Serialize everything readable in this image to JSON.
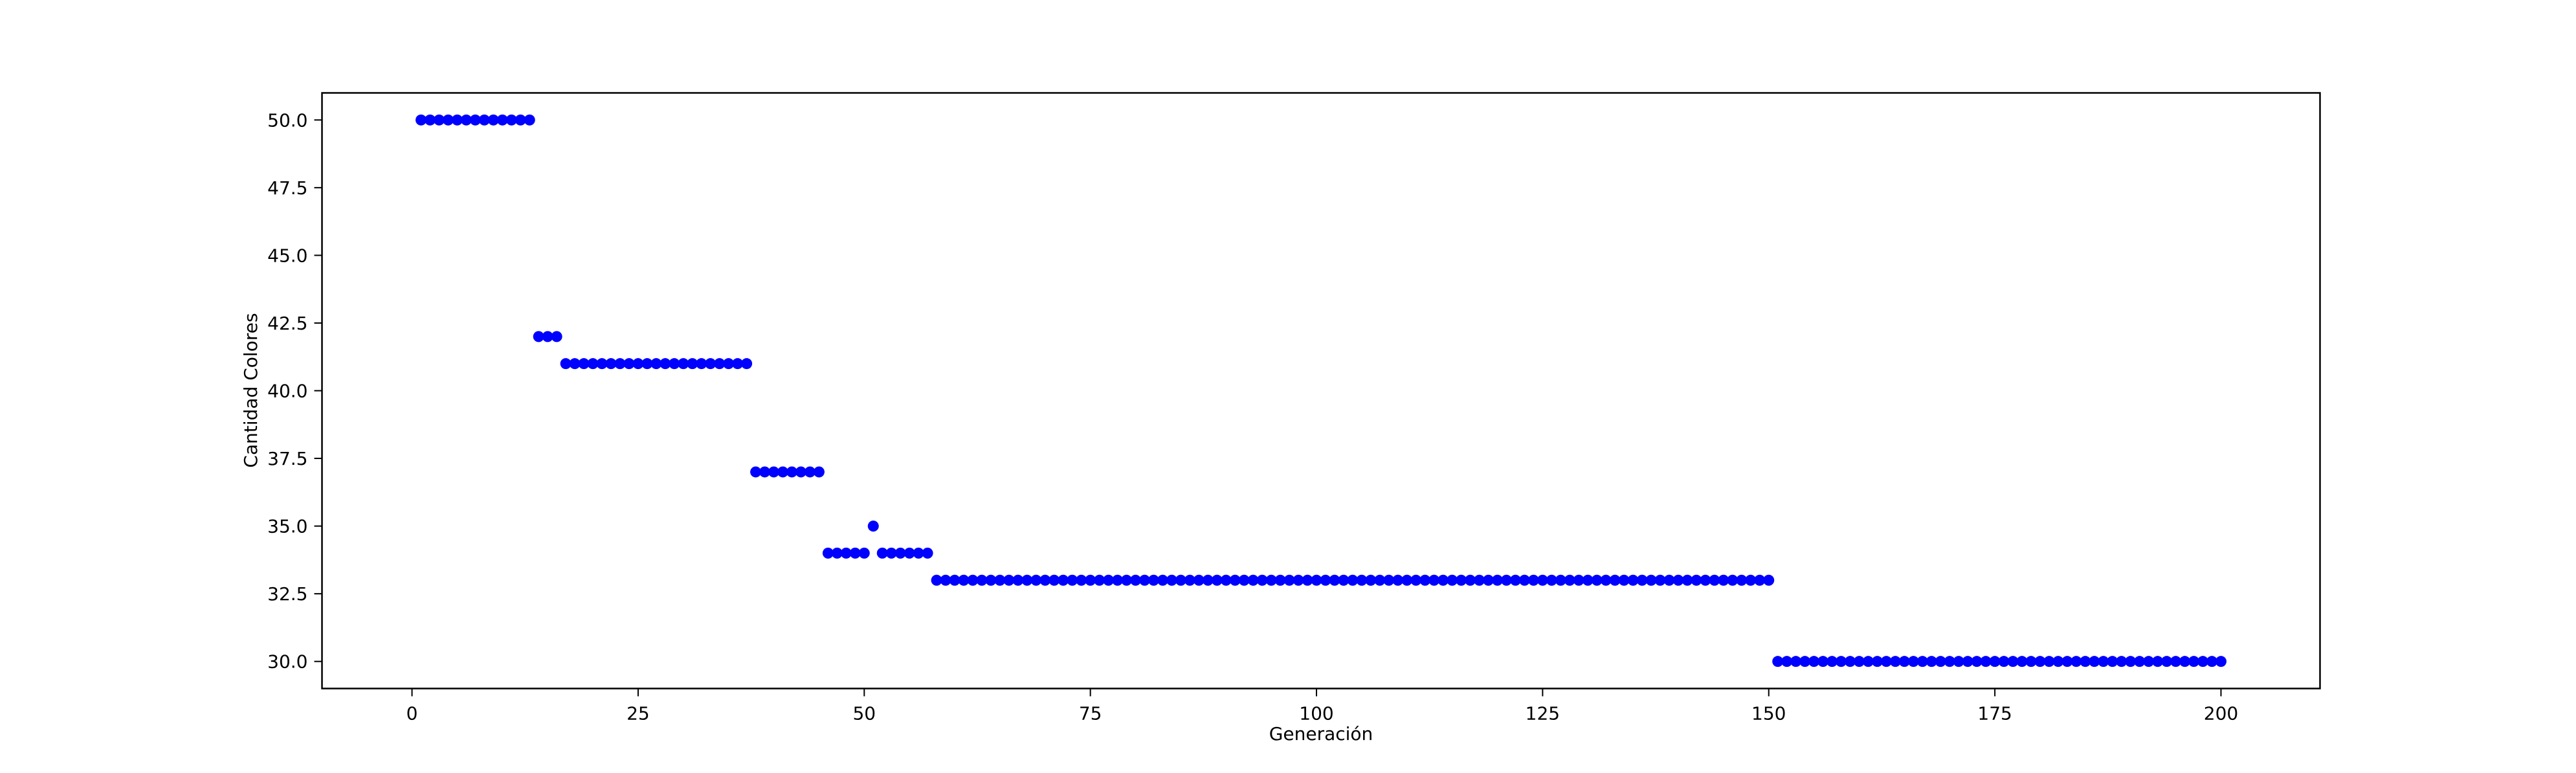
{
  "chart_data": {
    "type": "scatter",
    "title": "",
    "xlabel": "Generación",
    "ylabel": "Cantidad Colores",
    "xlim": [
      -9.95,
      210.95
    ],
    "ylim": [
      29.0,
      51.0
    ],
    "xticks": [
      0,
      25,
      50,
      75,
      100,
      125,
      150,
      175,
      200
    ],
    "xtick_labels": [
      "0",
      "25",
      "50",
      "75",
      "100",
      "125",
      "150",
      "175",
      "200"
    ],
    "yticks": [
      30.0,
      32.5,
      35.0,
      37.5,
      40.0,
      42.5,
      45.0,
      47.5,
      50.0
    ],
    "ytick_labels": [
      "30.0",
      "32.5",
      "35.0",
      "37.5",
      "40.0",
      "42.5",
      "45.0",
      "47.5",
      "50.0"
    ],
    "grid": false,
    "marker_color": "#0000ff",
    "segments": [
      {
        "x_start": 1,
        "x_end": 13,
        "y": 50
      },
      {
        "x_start": 14,
        "x_end": 16,
        "y": 42
      },
      {
        "x_start": 17,
        "x_end": 37,
        "y": 41
      },
      {
        "x_start": 38,
        "x_end": 45,
        "y": 37
      },
      {
        "x_start": 46,
        "x_end": 50,
        "y": 34
      },
      {
        "x_start": 51,
        "x_end": 51,
        "y": 35
      },
      {
        "x_start": 52,
        "x_end": 57,
        "y": 34
      },
      {
        "x_start": 58,
        "x_end": 150,
        "y": 33
      },
      {
        "x_start": 151,
        "x_end": 200,
        "y": 30
      }
    ]
  }
}
